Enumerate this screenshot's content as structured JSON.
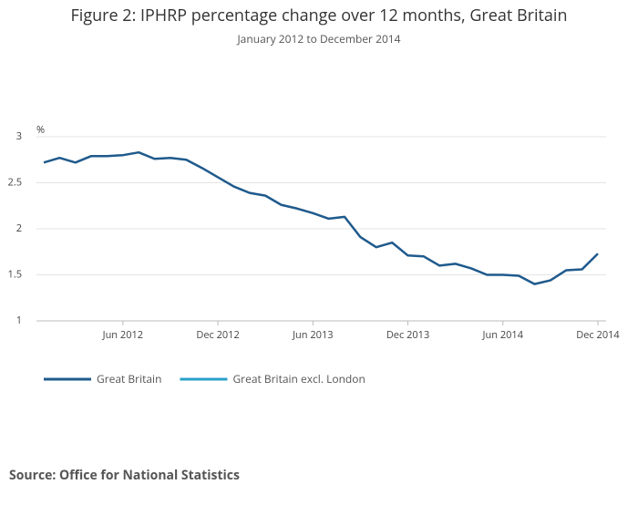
{
  "chart_data": {
    "type": "line",
    "title": "Figure 2: IPHRP percentage change over 12 months, Great Britain",
    "subtitle": "January 2012 to December 2014",
    "y_label": "%",
    "categories": [
      null,
      null,
      null,
      null,
      null,
      "Jun 2012",
      null,
      null,
      null,
      null,
      null,
      "Dec 2012",
      null,
      null,
      null,
      null,
      null,
      "Jun 2013",
      null,
      null,
      null,
      null,
      null,
      "Dec 2013",
      null,
      null,
      null,
      null,
      null,
      "Jun 2014",
      null,
      null,
      null,
      null,
      null,
      "Dec 2014"
    ],
    "series": [
      {
        "name": "Great Britain",
        "color": "#1f5a8c",
        "values": [
          2.72,
          2.77,
          2.72,
          2.79,
          2.79,
          2.8,
          2.83,
          2.76,
          2.77,
          2.75,
          2.66,
          2.56,
          2.46,
          2.39,
          2.36,
          2.26,
          2.22,
          2.17,
          2.11,
          2.13,
          1.91,
          1.8,
          1.85,
          1.71,
          1.7,
          1.6,
          1.62,
          1.57,
          1.5,
          1.5,
          1.49,
          1.4,
          1.44,
          1.55,
          1.56,
          1.73
        ]
      },
      {
        "name": "Great Britain excl. London",
        "color": "#2aa0c8",
        "values": [
          null,
          null,
          null,
          null,
          null,
          null,
          null,
          null,
          null,
          null,
          null,
          null,
          null,
          null,
          null,
          null,
          null,
          null,
          null,
          null,
          null,
          null,
          null,
          null,
          null,
          null,
          null,
          null,
          null,
          null,
          null,
          null,
          null,
          null,
          null,
          null
        ]
      }
    ],
    "ylim": [
      1,
      3
    ],
    "yticks": [
      1,
      1.5,
      2,
      2.5,
      3
    ],
    "grid": true,
    "source": "Source: Office for National Statistics"
  }
}
